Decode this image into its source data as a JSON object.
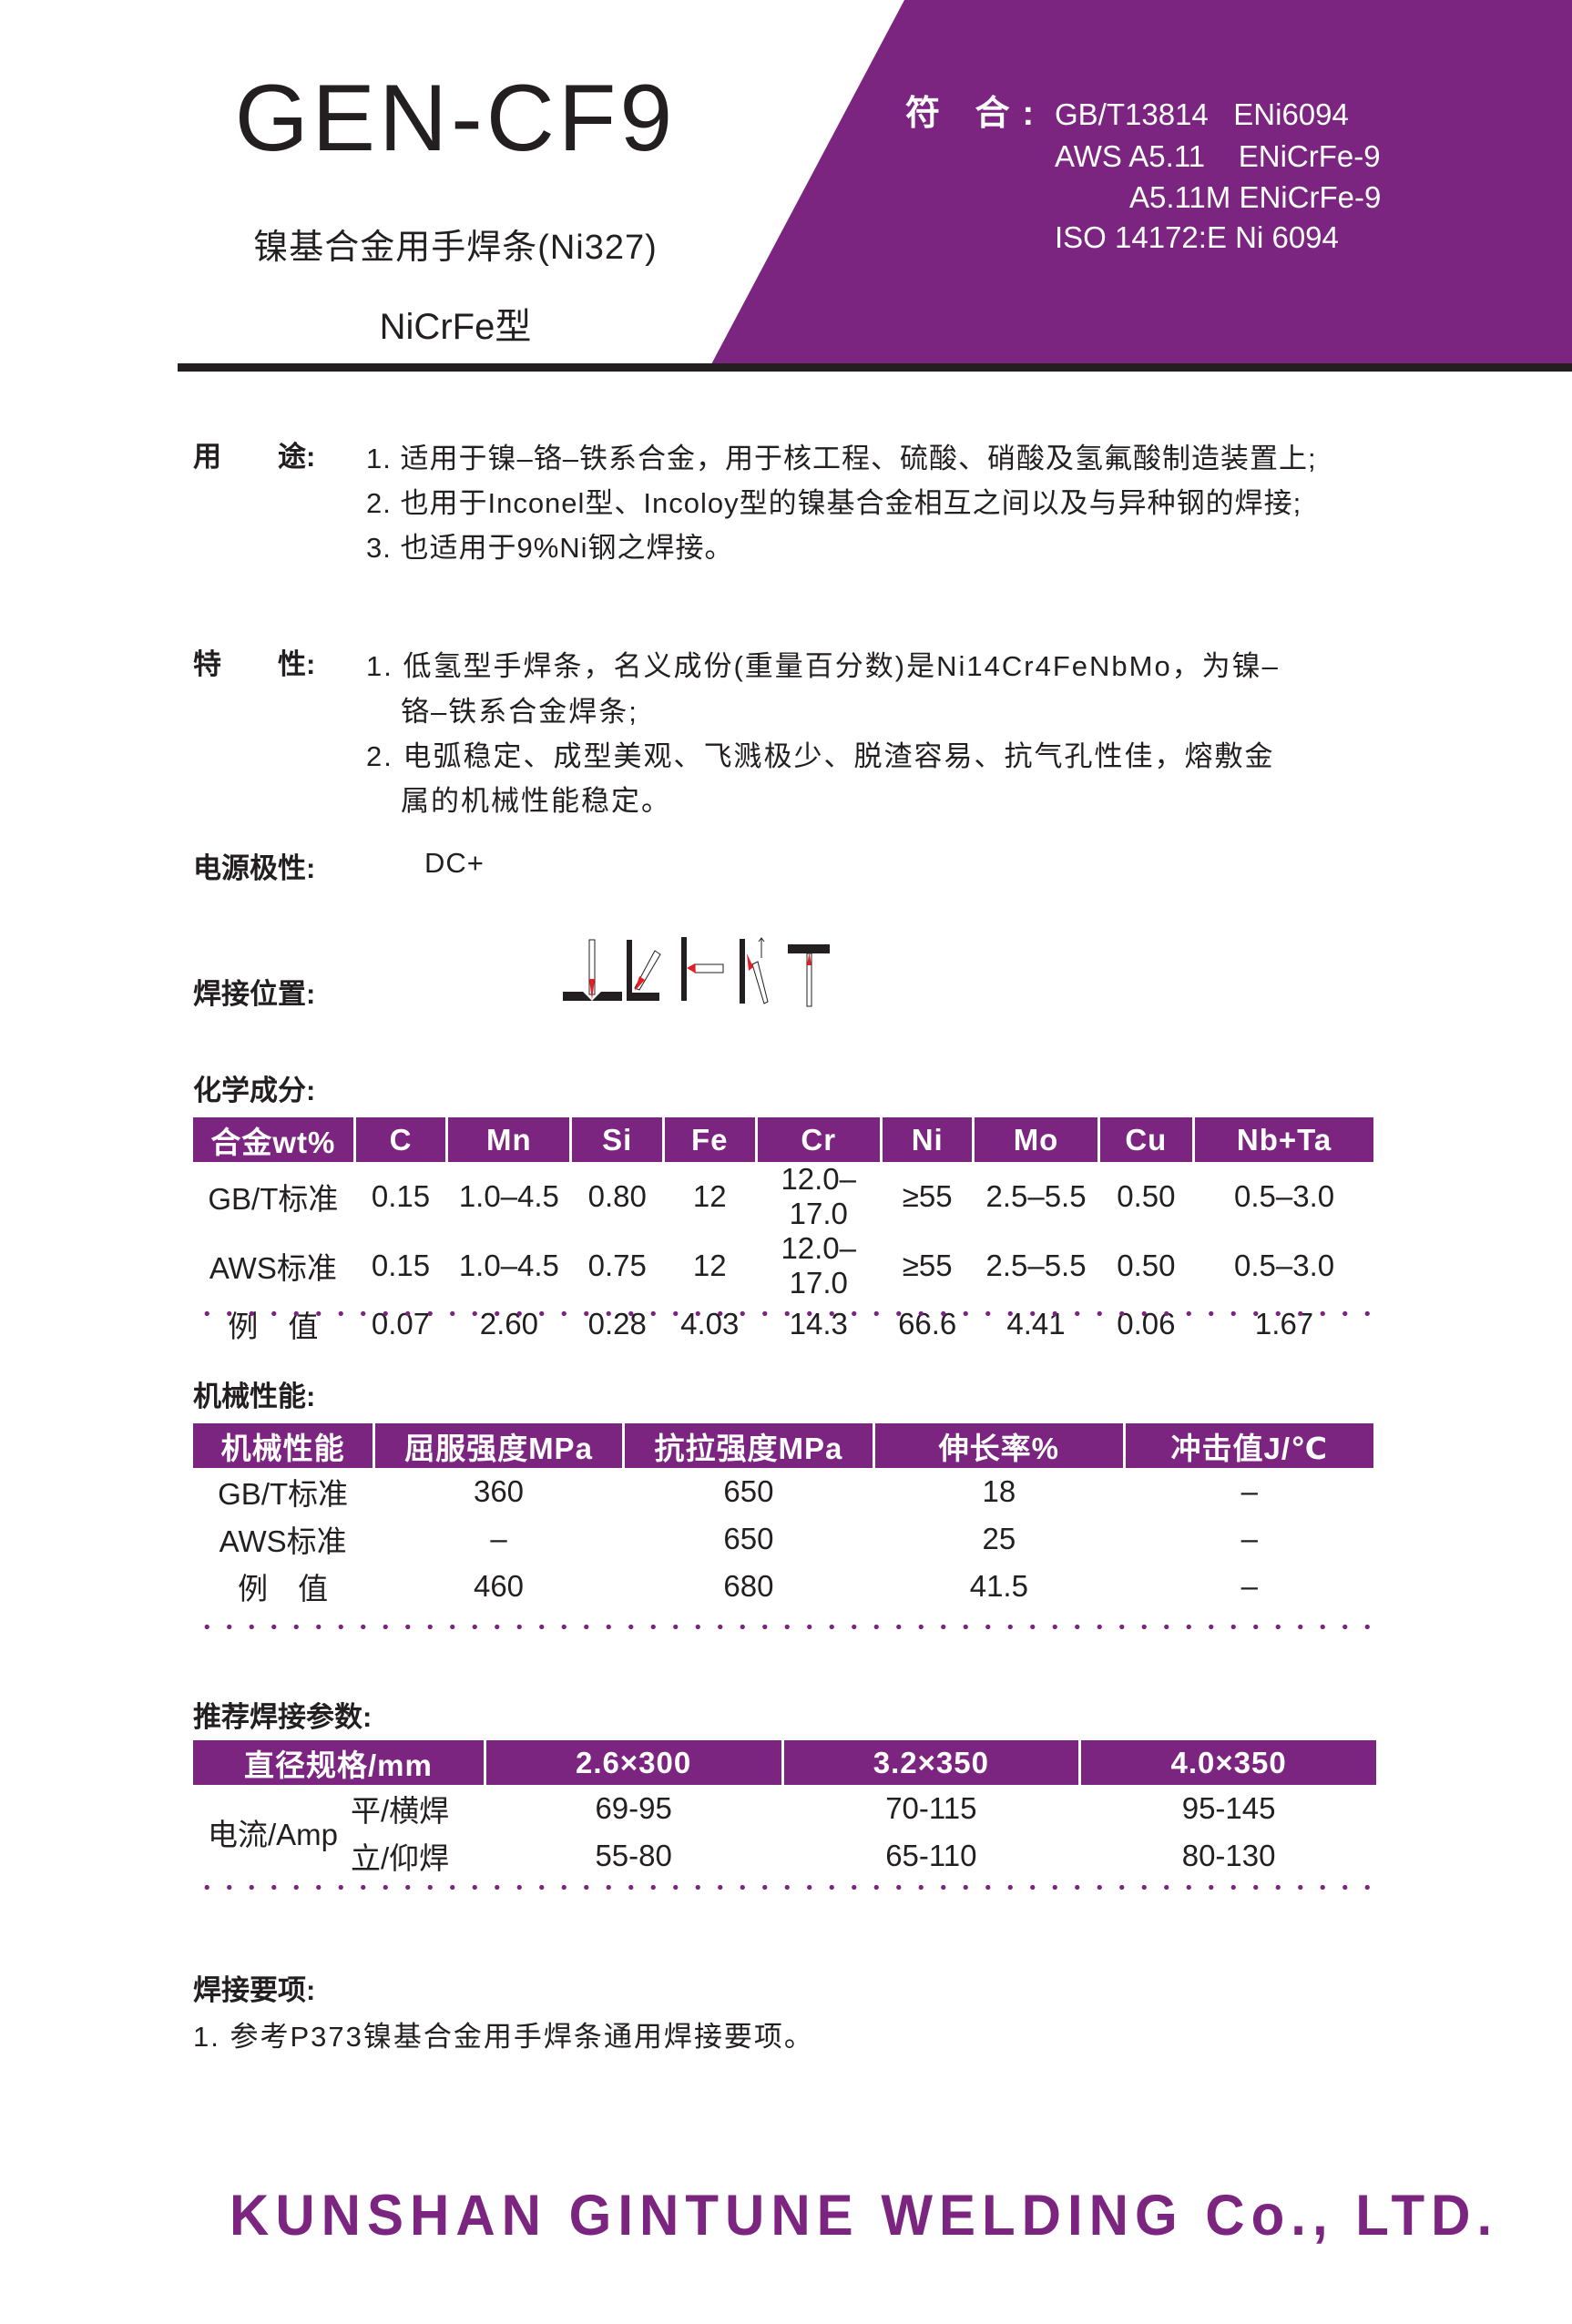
{
  "header": {
    "title": "GEN-CF9",
    "subtitle": "镍基合金用手焊条(Ni327)",
    "type": "NiCrFe型",
    "conform_label": "符 合:",
    "conform_lines": [
      "GB/T13814   ENi6094",
      "AWS A5.11    ENiCrFe-9",
      "A5.11M ENiCrFe-9",
      "ISO 14172:E Ni 6094"
    ],
    "brand_color": "#7b2580"
  },
  "usage": {
    "label": "用　　途:",
    "items": [
      "1. 适用于镍–铬–铁系合金，用于核工程、硫酸、硝酸及氢氟酸制造装置上;",
      "2. 也用于Inconel型、Incoloy型的镍基合金相互之间以及与异种钢的焊接;",
      "3. 也适用于9%Ni钢之焊接。"
    ]
  },
  "features": {
    "label": "特　　性:",
    "lines": [
      "1. 低氢型手焊条，名义成份(重量百分数)是Ni14Cr4FeNbMo，为镍–",
      "铬–铁系合金焊条;",
      "2. 电弧稳定、成型美观、飞溅极少、脱渣容易、抗气孔性佳，熔敷金",
      "属的机械性能稳定。"
    ]
  },
  "polarity": {
    "label": "电源极性:",
    "value": "DC+"
  },
  "positions": {
    "label": "焊接位置:",
    "icons": [
      "flat-position-icon",
      "horizontal-fillet-icon",
      "horizontal-position-icon",
      "vertical-up-icon",
      "overhead-position-icon"
    ]
  },
  "chemical": {
    "label": "化学成分:",
    "headers": [
      "合金wt%",
      "C",
      "Mn",
      "Si",
      "Fe",
      "Cr",
      "Ni",
      "Mo",
      "Cu",
      "Nb+Ta"
    ],
    "rows": [
      [
        "GB/T标准",
        "0.15",
        "1.0–4.5",
        "0.80",
        "12",
        "12.0–17.0",
        "≥55",
        "2.5–5.5",
        "0.50",
        "0.5–3.0"
      ],
      [
        "AWS标准",
        "0.15",
        "1.0–4.5",
        "0.75",
        "12",
        "12.0–17.0",
        "≥55",
        "2.5–5.5",
        "0.50",
        "0.5–3.0"
      ],
      [
        "例　值",
        "0.07",
        "2.60",
        "0.28",
        "4.03",
        "14.3",
        "66.6",
        "4.41",
        "0.06",
        "1.67"
      ]
    ]
  },
  "mechanical": {
    "label": "机械性能:",
    "headers": [
      "机械性能",
      "屈服强度MPa",
      "抗拉强度MPa",
      "伸长率%",
      "冲击值J/℃"
    ],
    "rows": [
      [
        "GB/T标准",
        "360",
        "650",
        "18",
        "–"
      ],
      [
        "AWS标准",
        "–",
        "650",
        "25",
        "–"
      ],
      [
        "例　值",
        "460",
        "680",
        "41.5",
        "–"
      ]
    ]
  },
  "parameters": {
    "label": "推荐焊接参数:",
    "headers": [
      "直径规格/mm",
      "2.6×300",
      "3.2×350",
      "4.0×350"
    ],
    "current_label": "电流/Amp",
    "rows": [
      [
        "平/横焊",
        "69-95",
        "70-115",
        "95-145"
      ],
      [
        "立/仰焊",
        "55-80",
        "65-110",
        "80-130"
      ]
    ]
  },
  "notes": {
    "label": "焊接要项:",
    "items": [
      "1. 参考P373镍基合金用手焊条通用焊接要项。"
    ]
  },
  "footer": {
    "company": "KUNSHAN GINTUNE WELDING Co., LTD."
  }
}
